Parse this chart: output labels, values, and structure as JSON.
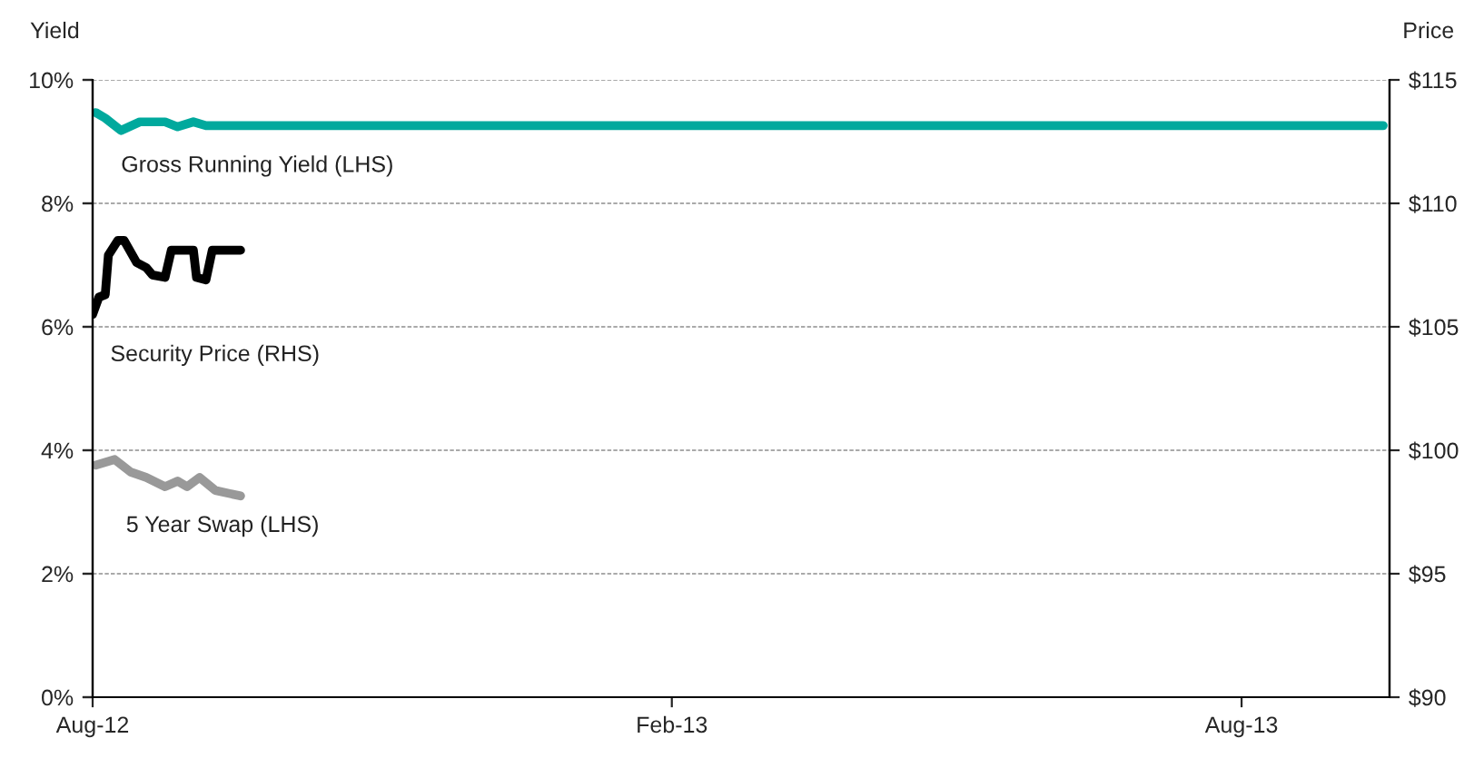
{
  "chart_data": {
    "type": "line",
    "ylabel": "Yield",
    "y2label": "Price",
    "xlim": [
      "2012-08-01",
      "2013-09-17"
    ],
    "xticks": [
      {
        "value": "2012-08-01",
        "label": "Aug-12"
      },
      {
        "value": "2013-02-01",
        "label": "Feb-13"
      },
      {
        "value": "2013-08-01",
        "label": "Aug-13"
      }
    ],
    "ylim": [
      0,
      10
    ],
    "yticks": [
      {
        "value": 0,
        "label": "0%"
      },
      {
        "value": 2,
        "label": "2%"
      },
      {
        "value": 4,
        "label": "4%"
      },
      {
        "value": 6,
        "label": "6%"
      },
      {
        "value": 8,
        "label": "8%"
      },
      {
        "value": 10,
        "label": "10%"
      }
    ],
    "y2lim": [
      90,
      115
    ],
    "y2ticks": [
      {
        "value": 90,
        "label": "$90"
      },
      {
        "value": 95,
        "label": "$95"
      },
      {
        "value": 100,
        "label": "$100"
      },
      {
        "value": 105,
        "label": "$105"
      },
      {
        "value": 110,
        "label": "$110"
      },
      {
        "value": 115,
        "label": "$115"
      }
    ],
    "grid": "y",
    "line_style": "solid",
    "marker": "none",
    "series": [
      {
        "name": "Gross Running Yield (LHS)",
        "color": "#00a99d",
        "x": [
          "2012-08-02",
          "2012-08-05",
          "2012-08-10",
          "2012-08-16",
          "2012-08-24",
          "2012-08-28",
          "2012-09-02",
          "2012-09-06",
          "2013-09-15"
        ],
        "values": [
          9.47,
          9.38,
          9.18,
          9.32,
          9.32,
          9.24,
          9.32,
          9.26,
          9.26
        ]
      },
      {
        "name": "Security Price (RHS)",
        "color": "#000000",
        "axis": "y2",
        "x": [
          "2012-08-01",
          "2012-08-03",
          "2012-08-05",
          "2012-08-06",
          "2012-08-09",
          "2012-08-11",
          "2012-08-15",
          "2012-08-18",
          "2012-08-20",
          "2012-08-24",
          "2012-08-26",
          "2012-09-02",
          "2012-09-03",
          "2012-09-06",
          "2012-09-08",
          "2012-09-17"
        ],
        "values": [
          105.5,
          106.2,
          106.3,
          107.9,
          108.5,
          108.5,
          107.6,
          107.4,
          107.1,
          107.0,
          108.1,
          108.1,
          107.0,
          106.9,
          108.1,
          108.1
        ]
      },
      {
        "name": "5 Year Swap (LHS)",
        "color": "#999999",
        "x": [
          "2012-08-02",
          "2012-08-08",
          "2012-08-13",
          "2012-08-18",
          "2012-08-24",
          "2012-08-28",
          "2012-08-31",
          "2012-09-04",
          "2012-09-09",
          "2012-09-17"
        ],
        "values": [
          3.76,
          3.85,
          3.65,
          3.56,
          3.41,
          3.5,
          3.41,
          3.56,
          3.35,
          3.26
        ]
      }
    ]
  }
}
